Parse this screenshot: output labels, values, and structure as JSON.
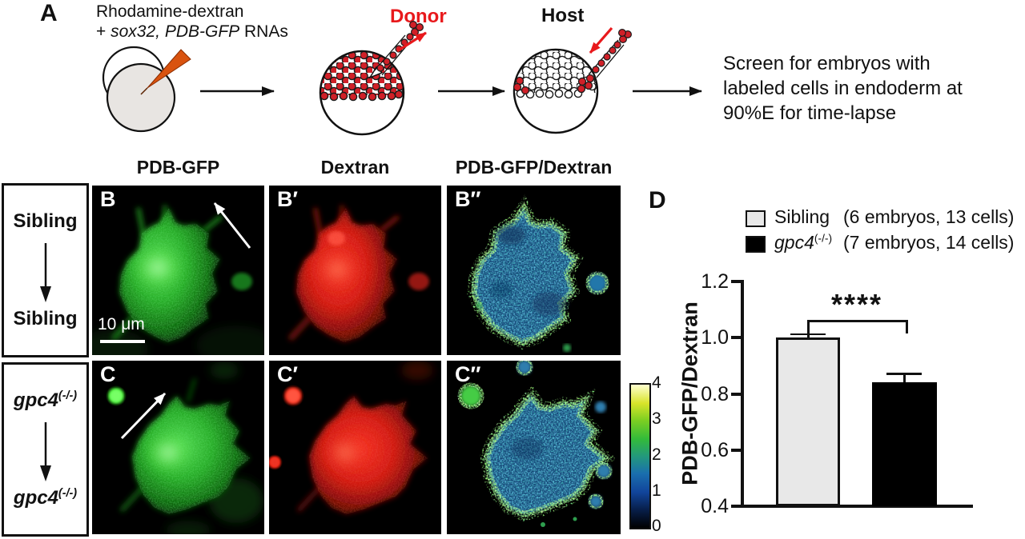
{
  "figure": {
    "panel_a": {
      "label": "A",
      "injection_line1": "Rhodamine-dextran",
      "injection_line2_prefix": "+ ",
      "injection_line2_italic": "sox32, PDB-GFP",
      "injection_line2_suffix": " RNAs",
      "donor_label": "Donor",
      "host_label": "Host",
      "screen_line1": "Screen for embryos with",
      "screen_line2": "labeled cells in endoderm at",
      "screen_line3": "90%E for time-lapse"
    },
    "column_headers": [
      "PDB-GFP",
      "Dextran",
      "PDB-GFP/Dextran"
    ],
    "row_b": {
      "box_top": "Sibling",
      "box_bottom": "Sibling",
      "panel_labels": [
        "B",
        "B′",
        "B″"
      ],
      "scale_bar_label": "10 μm"
    },
    "row_c": {
      "gene": "gpc4",
      "allele": "(-/-)",
      "panel_labels": [
        "C",
        "C′",
        "C″"
      ]
    },
    "colorbar": {
      "labels": [
        "4",
        "3",
        "2",
        "1",
        "0"
      ]
    },
    "panel_d": {
      "label": "D",
      "legend": [
        {
          "name": "Sibling",
          "count": "(6 embryos, 13 cells)"
        },
        {
          "gene": "gpc4",
          "allele": "(-/-)",
          "count": "(7 embryos, 14 cells)"
        }
      ],
      "ytick_labels": [
        "1.2",
        "1.0",
        "0.8",
        "0.6",
        "0.4"
      ],
      "ylabel": "PDB-GFP/Dextran",
      "significance": "****"
    }
  },
  "chart_data": {
    "type": "bar",
    "categories": [
      "Sibling",
      "gpc4(-/-)"
    ],
    "values": [
      1.0,
      0.84
    ],
    "errors": [
      0.008,
      0.028
    ],
    "bar_colors": [
      "#e8e8e8",
      "#000000"
    ],
    "ylabel": "PDB-GFP/Dextran",
    "ylim": [
      0.4,
      1.2
    ],
    "yticks": [
      0.4,
      0.6,
      0.8,
      1.0,
      1.2
    ],
    "significance": "****",
    "legend": [
      "Sibling (6 embryos, 13 cells)",
      "gpc4(-/-) (7 embryos, 14 cells)"
    ]
  }
}
